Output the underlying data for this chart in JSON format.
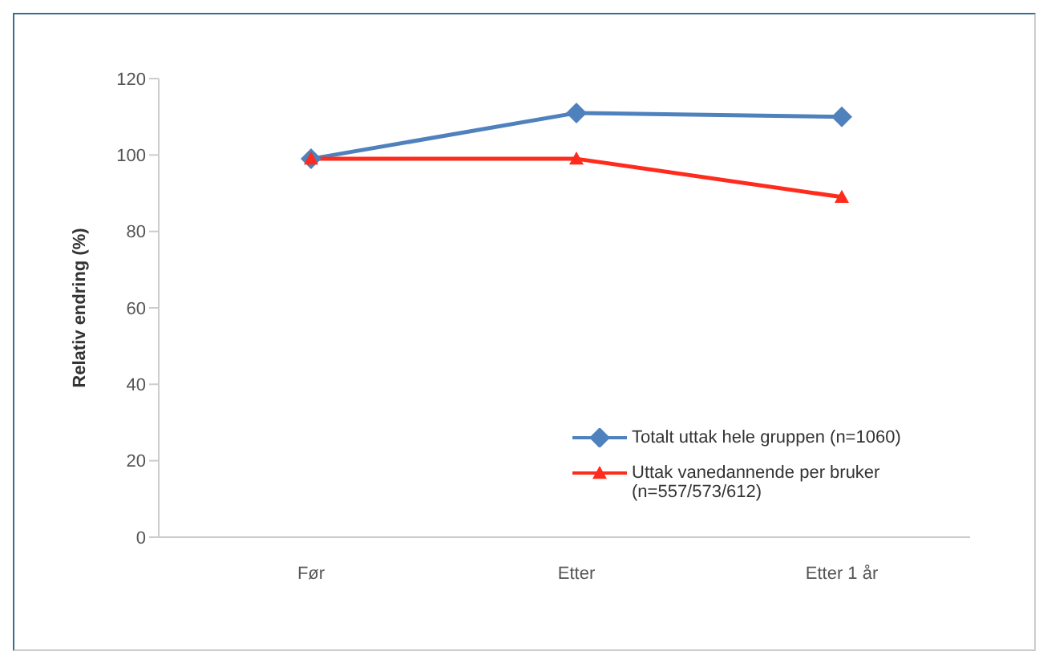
{
  "chart_data": {
    "type": "line",
    "ylabel": "Relativ endring (%)",
    "categories": [
      "Før",
      "Etter",
      "Etter 1 år"
    ],
    "series": [
      {
        "name": "Totalt uttak hele gruppen (n=1060)",
        "color": "#4f81bd",
        "values": [
          99,
          111,
          110
        ],
        "marker": "diamond"
      },
      {
        "name": "Uttak vanedannende per bruker (n=557/573/612)",
        "color": "#ff2b1c",
        "values": [
          99,
          99,
          89
        ],
        "marker": "triangle"
      }
    ],
    "ylim": [
      0,
      120
    ],
    "yticks": [
      0,
      20,
      40,
      60,
      80,
      100,
      120
    ],
    "grid": false,
    "legend": "bottom right",
    "line_style": "solid"
  }
}
